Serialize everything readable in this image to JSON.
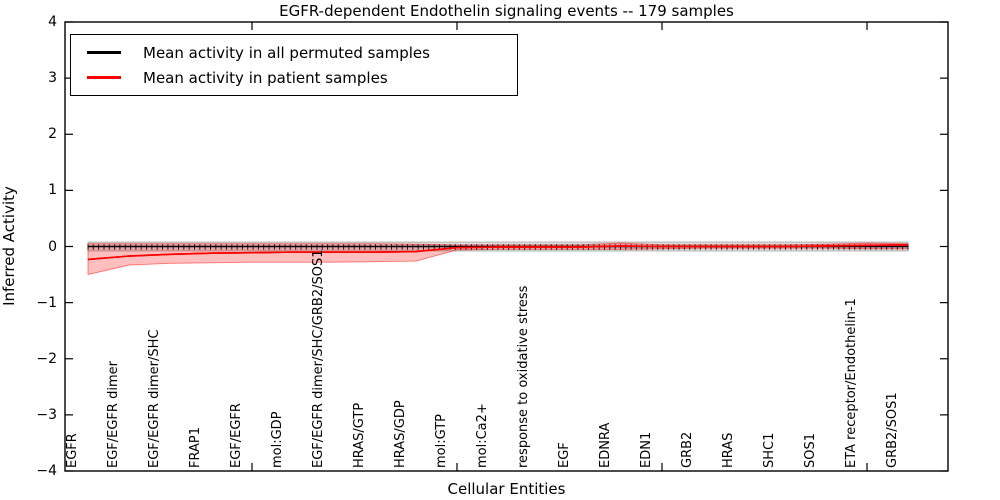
{
  "figure": {
    "title": "EGFR-dependent Endothelin signaling events -- 179 samples",
    "xlabel": "Cellular Entities",
    "ylabel": "Inferred Activity"
  },
  "legend": {
    "position": "upper left",
    "entries": [
      {
        "label": "Mean activity in all permuted samples",
        "color": "#000000"
      },
      {
        "label": "Mean activity in patient samples",
        "color": "#ff0000"
      }
    ]
  },
  "chart_data": {
    "type": "line",
    "title": "EGFR-dependent Endothelin signaling events -- 179 samples",
    "xlabel": "Cellular Entities",
    "ylabel": "Inferred Activity",
    "ylim": [
      -4,
      4
    ],
    "yticks": [
      4,
      3,
      2,
      1,
      0,
      -1,
      -2,
      -3,
      -4
    ],
    "ytick_labels": [
      "4",
      "3",
      "2",
      "1",
      "0",
      "−1",
      "−2",
      "−3",
      "−4"
    ],
    "x_major_tick_positions": [
      5,
      10,
      15,
      20
    ],
    "grid": false,
    "legend_position": "upper left",
    "categories": [
      "EGFR",
      "EGF/EGFR dimer",
      "EGF/EGFR dimer/SHC",
      "FRAP1",
      "EGF/EGFR",
      "mol:GDP",
      "EGF/EGFR dimer/SHC/GRB2/SOS1",
      "HRAS/GTP",
      "HRAS/GDP",
      "mol:GTP",
      "mol:Ca2+",
      "response to oxidative stress",
      "EGF",
      "EDNRA",
      "EDN1",
      "GRB2",
      "HRAS",
      "SHC1",
      "SOS1",
      "ETA receptor/Endothelin-1",
      "GRB2/SOS1"
    ],
    "series": [
      {
        "name": "Mean activity in all permuted samples",
        "color": "#000000",
        "line_width": 1.6,
        "marker": "|",
        "marker_count": 155,
        "values": [
          0,
          0,
          0,
          0,
          0,
          0,
          0,
          0,
          0,
          0,
          0,
          0,
          0,
          0,
          0,
          0,
          0,
          0,
          0,
          0,
          0
        ],
        "band": {
          "fill": "rgba(0,0,0,0.13)",
          "edge": "rgba(0,0,0,0.25)",
          "upper": [
            0.08,
            0.08,
            0.08,
            0.08,
            0.08,
            0.08,
            0.08,
            0.08,
            0.08,
            0.08,
            0.08,
            0.08,
            0.08,
            0.08,
            0.08,
            0.08,
            0.08,
            0.08,
            0.08,
            0.08,
            0.08
          ],
          "lower": [
            -0.08,
            -0.08,
            -0.08,
            -0.08,
            -0.08,
            -0.08,
            -0.08,
            -0.08,
            -0.08,
            -0.08,
            -0.08,
            -0.08,
            -0.08,
            -0.08,
            -0.08,
            -0.08,
            -0.08,
            -0.08,
            -0.08,
            -0.08,
            -0.08
          ]
        }
      },
      {
        "name": "Mean activity in patient samples",
        "color": "#ff0000",
        "line_width": 1.6,
        "marker": null,
        "values": [
          -0.23,
          -0.17,
          -0.14,
          -0.12,
          -0.11,
          -0.1,
          -0.1,
          -0.1,
          -0.09,
          -0.02,
          -0.01,
          -0.01,
          -0.01,
          0.01,
          0.0,
          0.0,
          0.0,
          0.0,
          0.01,
          0.02,
          0.03
        ],
        "band": {
          "fill": "rgba(255,0,0,0.25)",
          "edge": "rgba(255,0,0,0.5)",
          "upper": [
            0.05,
            0.05,
            0.05,
            0.05,
            0.05,
            0.05,
            0.05,
            0.05,
            0.04,
            0.03,
            0.03,
            0.03,
            0.03,
            0.06,
            0.03,
            0.03,
            0.03,
            0.03,
            0.04,
            0.06,
            0.05
          ],
          "lower": [
            -0.5,
            -0.33,
            -0.3,
            -0.29,
            -0.28,
            -0.28,
            -0.28,
            -0.27,
            -0.26,
            -0.06,
            -0.05,
            -0.05,
            -0.05,
            -0.05,
            -0.04,
            -0.03,
            -0.03,
            -0.03,
            -0.03,
            -0.04,
            -0.04
          ]
        }
      }
    ]
  }
}
